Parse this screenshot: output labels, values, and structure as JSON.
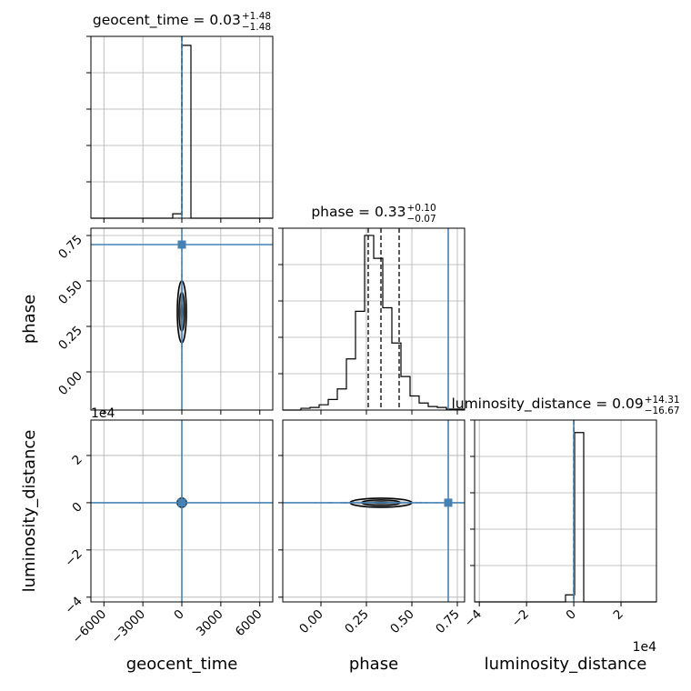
{
  "chart_data": {
    "type": "corner",
    "parameters": [
      "geocent_time",
      "phase",
      "luminosity_distance"
    ],
    "axis_labels": {
      "geocent_time": "geocent_time",
      "phase": "phase",
      "luminosity_distance": "luminosity_distance"
    },
    "ranges": {
      "geocent_time": [
        -7000,
        7000
      ],
      "phase": [
        -0.21,
        0.79
      ],
      "luminosity_distance": [
        -42000,
        35000
      ]
    },
    "ticks": {
      "geocent_time": [
        -6000,
        -3000,
        0,
        3000,
        6000
      ],
      "phase": [
        0.0,
        0.25,
        0.5,
        0.75
      ],
      "luminosity_distance": [
        -40000,
        -20000,
        0,
        20000
      ]
    },
    "tick_labels": {
      "geocent_time": [
        "−6000",
        "−3000",
        "0",
        "3000",
        "6000"
      ],
      "phase": [
        "0.00",
        "0.25",
        "0.50",
        "0.75"
      ],
      "luminosity_distance": [
        "−4",
        "−2",
        "0",
        "2"
      ]
    },
    "offset_text": "1e4",
    "titles": [
      {
        "param": "geocent_time",
        "text": "geocent_time = 0.03",
        "plus": "+1.48",
        "minus": "−1.48"
      },
      {
        "param": "phase",
        "text": "phase = 0.33",
        "plus": "+0.10",
        "minus": "−0.07"
      },
      {
        "param": "luminosity_distance",
        "text": "luminosity_distance = 0.09",
        "plus": "+14.31",
        "minus": "−16.67"
      }
    ],
    "truths": {
      "geocent_time": 0,
      "phase": 0.7,
      "luminosity_distance": 0
    },
    "truth_color": "#4682b4",
    "quantiles": {
      "geocent_time": [
        -1.45,
        0.03,
        1.51
      ],
      "phase": [
        0.26,
        0.33,
        0.43
      ],
      "luminosity_distance": [
        -16.58,
        0.09,
        14.4
      ]
    },
    "histograms": {
      "geocent_time": {
        "bin_edges": [
          -7000,
          -6300,
          -5600,
          -4900,
          -4200,
          -3500,
          -2800,
          -2100,
          -1400,
          -700,
          0,
          700,
          1400,
          2100,
          2800,
          3500,
          4200,
          4900,
          5600,
          6300,
          7000
        ],
        "heights": [
          0,
          0,
          0,
          0,
          0,
          0,
          0,
          0,
          0,
          0.025,
          0.98,
          0,
          0,
          0,
          0,
          0,
          0,
          0,
          0,
          0
        ]
      },
      "phase": {
        "bin_edges": [
          -0.21,
          -0.16,
          -0.11,
          -0.06,
          -0.01,
          0.04,
          0.09,
          0.14,
          0.19,
          0.24,
          0.29,
          0.34,
          0.39,
          0.44,
          0.49,
          0.54,
          0.59,
          0.64,
          0.69,
          0.74,
          0.79
        ],
        "heights": [
          0,
          0,
          0.01,
          0.015,
          0.03,
          0.06,
          0.12,
          0.29,
          0.56,
          0.99,
          0.86,
          0.58,
          0.38,
          0.19,
          0.08,
          0.04,
          0.02,
          0.015,
          0.005,
          0.005
        ]
      },
      "luminosity_distance": {
        "bin_edges": [
          -42000,
          -38150,
          -34300,
          -30450,
          -26600,
          -22750,
          -18900,
          -15050,
          -11200,
          -7350,
          -3500,
          350,
          4200,
          8050,
          11900,
          15750,
          19600,
          23450,
          27300,
          31150,
          35000
        ],
        "heights": [
          0,
          0,
          0,
          0,
          0,
          0,
          0,
          0,
          0,
          0,
          0.04,
          0.96,
          0,
          0,
          0,
          0,
          0,
          0,
          0,
          0
        ]
      }
    },
    "grid": true
  }
}
